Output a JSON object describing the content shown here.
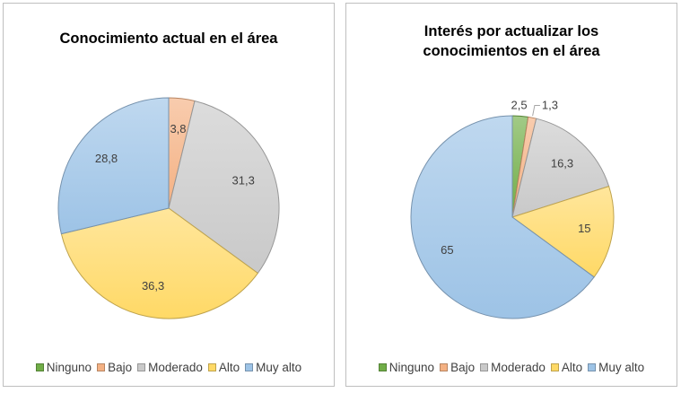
{
  "chart_data": [
    {
      "type": "pie",
      "title": "Conocimiento actual en el área",
      "categories": [
        "Ninguno",
        "Bajo",
        "Moderado",
        "Alto",
        "Muy alto"
      ],
      "values": [
        0,
        3.8,
        31.3,
        36.3,
        28.8
      ],
      "data_labels": [
        "",
        "3,8",
        "31,3",
        "36,3",
        "28,8"
      ],
      "colors": [
        "#70ad47",
        "#f4b183",
        "#c9c9c9",
        "#ffd966",
        "#9dc3e6"
      ],
      "legend_position": "bottom"
    },
    {
      "type": "pie",
      "title": [
        "Interés por actualizar los",
        "conocimientos en el área"
      ],
      "categories": [
        "Ninguno",
        "Bajo",
        "Moderado",
        "Alto",
        "Muy alto"
      ],
      "values": [
        2.5,
        1.3,
        16.3,
        15,
        65
      ],
      "data_labels": [
        "2,5",
        "1,3",
        "16,3",
        "15",
        "65"
      ],
      "colors": [
        "#70ad47",
        "#f4b183",
        "#c9c9c9",
        "#ffd966",
        "#9dc3e6"
      ],
      "legend_position": "bottom"
    }
  ]
}
